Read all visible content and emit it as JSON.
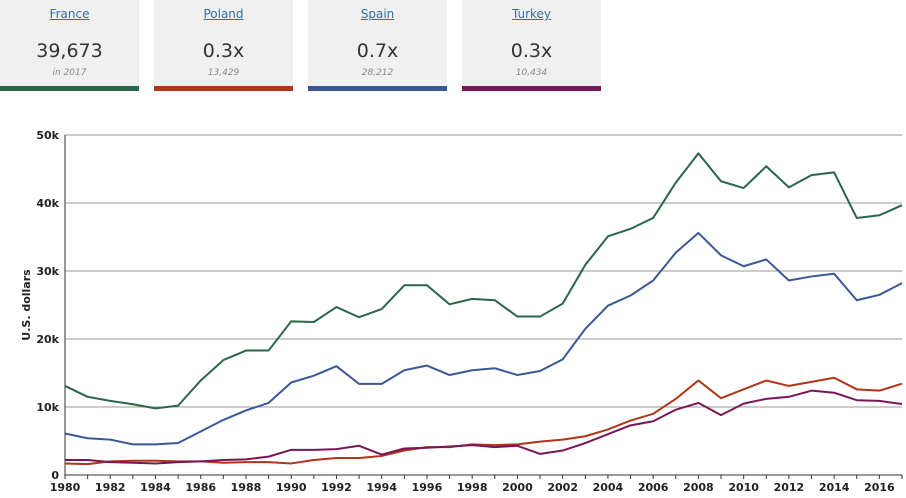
{
  "cards": [
    {
      "name": "France",
      "value": "39,673",
      "sub": "in 2017",
      "color": "#2a6647"
    },
    {
      "name": "Poland",
      "value": "0.3x",
      "sub": "13,429",
      "color": "#b0351b"
    },
    {
      "name": "Spain",
      "value": "0.7x",
      "sub": "28,212",
      "color": "#3a5894"
    },
    {
      "name": "Turkey",
      "value": "0.3x",
      "sub": "10,434",
      "color": "#7a1655"
    }
  ],
  "chart_data": {
    "type": "line",
    "title": "",
    "xlabel": "",
    "ylabel": "U.S. dollars",
    "ylim": [
      0,
      50000
    ],
    "xlim": [
      1980,
      2017
    ],
    "grid": "horizontal",
    "y_ticks": [
      "0",
      "10k",
      "20k",
      "30k",
      "40k",
      "50k"
    ],
    "x_ticks": [
      "1980",
      "1982",
      "1984",
      "1986",
      "1988",
      "1990",
      "1992",
      "1994",
      "1996",
      "1998",
      "2000",
      "2002",
      "2004",
      "2006",
      "2008",
      "2010",
      "2012",
      "2014",
      "2016"
    ],
    "x": [
      1980,
      1981,
      1982,
      1983,
      1984,
      1985,
      1986,
      1987,
      1988,
      1989,
      1990,
      1991,
      1992,
      1993,
      1994,
      1995,
      1996,
      1997,
      1998,
      1999,
      2000,
      2001,
      2002,
      2003,
      2004,
      2005,
      2006,
      2007,
      2008,
      2009,
      2010,
      2011,
      2012,
      2013,
      2014,
      2015,
      2016,
      2017
    ],
    "series": [
      {
        "name": "France",
        "color": "#2a6647",
        "values": [
          13100,
          11500,
          10900,
          10400,
          9800,
          10200,
          13900,
          16900,
          18300,
          18300,
          22600,
          22500,
          24700,
          23200,
          24400,
          27900,
          27900,
          25100,
          25900,
          25700,
          23300,
          23300,
          25200,
          30900,
          35100,
          36200,
          37800,
          43000,
          47300,
          43200,
          42200,
          45400,
          42300,
          44100,
          44500,
          37800,
          38200,
          39673
        ]
      },
      {
        "name": "Spain",
        "color": "#3a5894",
        "values": [
          6100,
          5400,
          5200,
          4500,
          4500,
          4700,
          6400,
          8100,
          9500,
          10600,
          13600,
          14600,
          16000,
          13400,
          13400,
          15400,
          16100,
          14700,
          15400,
          15700,
          14700,
          15300,
          17000,
          21500,
          24900,
          26400,
          28600,
          32700,
          35600,
          32300,
          30700,
          31700,
          28600,
          29200,
          29600,
          25700,
          26500,
          28212
        ]
      },
      {
        "name": "Poland",
        "color": "#b0351b",
        "values": [
          1700,
          1600,
          2000,
          2100,
          2100,
          2000,
          2000,
          1800,
          1900,
          1900,
          1700,
          2200,
          2500,
          2500,
          2800,
          3600,
          4100,
          4100,
          4500,
          4400,
          4500,
          4900,
          5200,
          5700,
          6700,
          8000,
          9000,
          11200,
          13900,
          11300,
          12600,
          13900,
          13100,
          13700,
          14300,
          12600,
          12400,
          13429
        ]
      },
      {
        "name": "Turkey",
        "color": "#7a1655",
        "values": [
          2200,
          2200,
          1900,
          1800,
          1700,
          1900,
          2000,
          2200,
          2300,
          2700,
          3700,
          3700,
          3800,
          4300,
          3000,
          3900,
          4000,
          4200,
          4400,
          4100,
          4300,
          3100,
          3600,
          4700,
          6000,
          7300,
          7900,
          9600,
          10600,
          8800,
          10500,
          11200,
          11500,
          12400,
          12100,
          11000,
          10900,
          10434
        ]
      }
    ]
  }
}
